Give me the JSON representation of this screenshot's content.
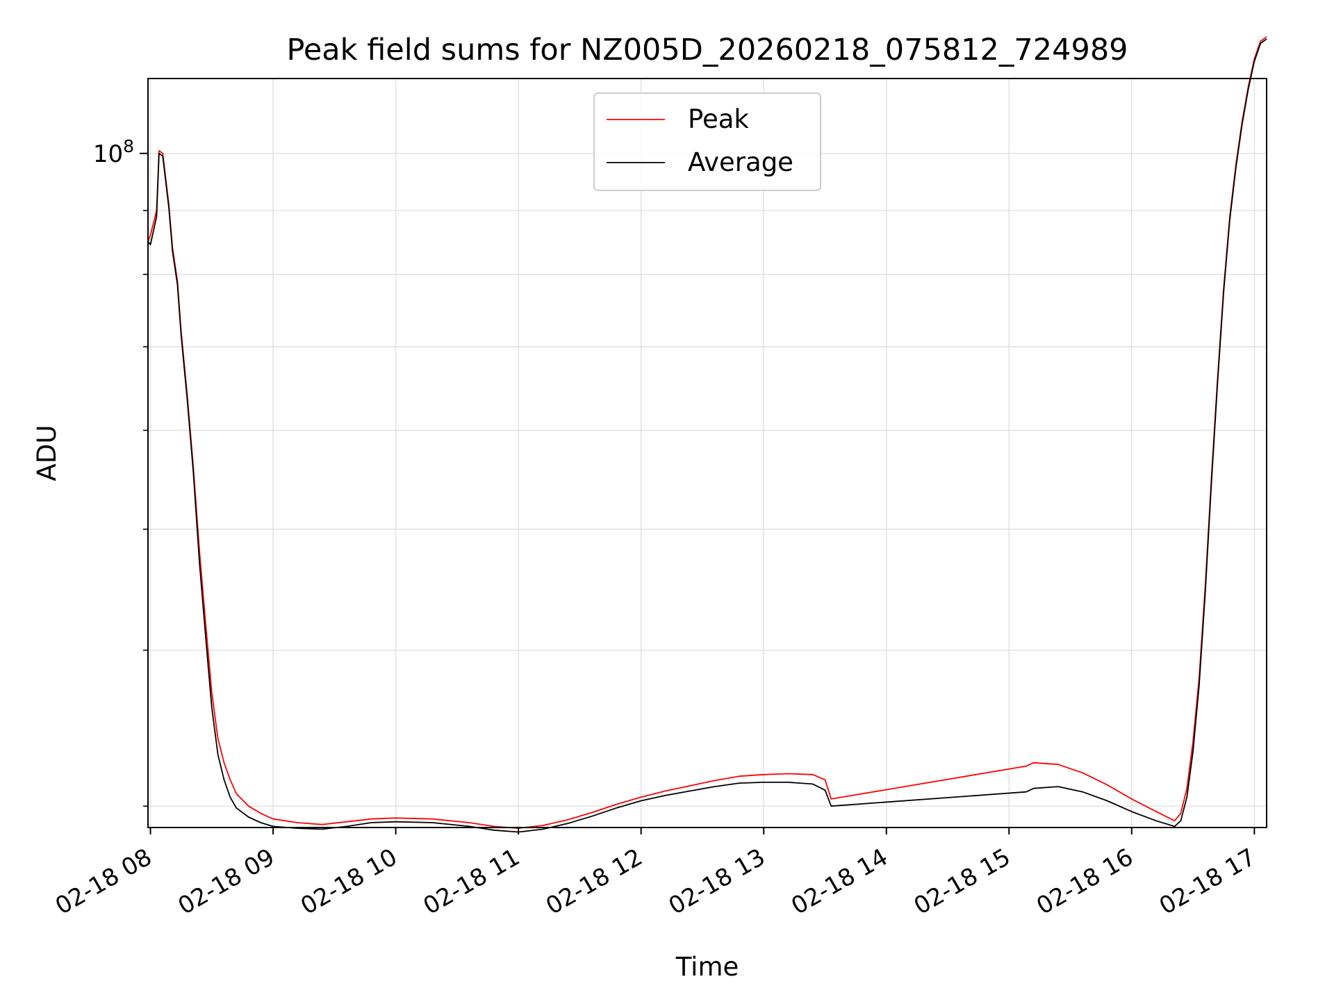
{
  "chart_data": {
    "type": "line",
    "title": "Peak field sums for NZ005D_20260218_075812_724989",
    "xlabel": "Time",
    "ylabel": "ADU",
    "yscale": "log",
    "grid": true,
    "legend_position": "top-center",
    "xlim": [
      7.98,
      17.1
    ],
    "ylim_log10": [
      7.46,
      8.06
    ],
    "y_tick_labels": [
      {
        "base": "10",
        "exp": "8",
        "value": 100000000
      }
    ],
    "y_minor_ticks": [
      30000000,
      40000000,
      50000000,
      60000000,
      70000000,
      80000000,
      90000000
    ],
    "x_tick_labels": [
      "02-18 08",
      "02-18 09",
      "02-18 10",
      "02-18 11",
      "02-18 12",
      "02-18 13",
      "02-18 14",
      "02-18 15",
      "02-18 16",
      "02-18 17"
    ],
    "x_ticks": [
      8,
      9,
      10,
      11,
      12,
      13,
      14,
      15,
      16,
      17
    ],
    "series": [
      {
        "name": "Peak",
        "color": "#ff0000",
        "x": [
          7.98,
          8.0,
          8.05,
          8.07,
          8.1,
          8.15,
          8.18,
          8.22,
          8.25,
          8.3,
          8.35,
          8.4,
          8.45,
          8.5,
          8.55,
          8.6,
          8.65,
          8.7,
          8.8,
          8.9,
          9.0,
          9.2,
          9.4,
          9.6,
          9.8,
          10.0,
          10.3,
          10.6,
          10.8,
          11.0,
          11.2,
          11.4,
          11.6,
          11.8,
          12.0,
          12.2,
          12.4,
          12.6,
          12.8,
          13.0,
          13.2,
          13.4,
          13.5,
          13.55,
          15.14,
          15.2,
          15.4,
          15.6,
          15.8,
          16.0,
          16.2,
          16.35,
          16.4,
          16.45,
          16.5,
          16.55,
          16.6,
          16.65,
          16.7,
          16.75,
          16.8,
          16.85,
          16.9,
          16.95,
          17.0,
          17.05,
          17.1
        ],
        "y": [
          85000000,
          86000000,
          90000000,
          100500000,
          100000000,
          91000000,
          84000000,
          79000000,
          72000000,
          64000000,
          56000000,
          48000000,
          42000000,
          37000000,
          34000000,
          32500000,
          31500000,
          30700000,
          30000000,
          29600000,
          29300000,
          29100000,
          29000000,
          29150000,
          29300000,
          29350000,
          29300000,
          29100000,
          28900000,
          28800000,
          28950000,
          29250000,
          29650000,
          30100000,
          30500000,
          30850000,
          31150000,
          31450000,
          31700000,
          31800000,
          31850000,
          31800000,
          31500000,
          30400000,
          32300000,
          32500000,
          32400000,
          31900000,
          31200000,
          30400000,
          29700000,
          29200000,
          29600000,
          31000000,
          33800000,
          38000000,
          45000000,
          55000000,
          66000000,
          78000000,
          89000000,
          98000000,
          106000000,
          113000000,
          119000000,
          123000000,
          124000000
        ]
      },
      {
        "name": "Average",
        "color": "#000000",
        "x": [
          7.98,
          8.0,
          8.05,
          8.07,
          8.1,
          8.15,
          8.18,
          8.22,
          8.25,
          8.3,
          8.35,
          8.4,
          8.45,
          8.5,
          8.55,
          8.6,
          8.65,
          8.7,
          8.8,
          8.9,
          9.0,
          9.2,
          9.4,
          9.6,
          9.8,
          10.0,
          10.3,
          10.6,
          10.8,
          11.0,
          11.2,
          11.4,
          11.6,
          11.8,
          12.0,
          12.2,
          12.4,
          12.6,
          12.8,
          13.0,
          13.2,
          13.4,
          13.5,
          13.55,
          15.14,
          15.2,
          15.4,
          15.6,
          15.8,
          16.0,
          16.2,
          16.35,
          16.4,
          16.45,
          16.5,
          16.55,
          16.6,
          16.65,
          16.7,
          16.75,
          16.8,
          16.85,
          16.9,
          16.95,
          17.0,
          17.05,
          17.1
        ],
        "y": [
          85000000,
          84500000,
          89000000,
          100000000,
          99500000,
          90500000,
          83500000,
          78500000,
          71500000,
          63500000,
          55500000,
          47000000,
          41000000,
          36000000,
          33000000,
          31500000,
          30500000,
          29900000,
          29400000,
          29100000,
          28900000,
          28800000,
          28750000,
          28900000,
          29100000,
          29150000,
          29100000,
          28900000,
          28700000,
          28600000,
          28750000,
          29050000,
          29450000,
          29900000,
          30300000,
          30600000,
          30850000,
          31100000,
          31300000,
          31350000,
          31350000,
          31250000,
          30900000,
          30000000,
          30800000,
          31000000,
          31100000,
          30800000,
          30300000,
          29700000,
          29200000,
          28900000,
          29200000,
          30500000,
          33200000,
          37500000,
          44500000,
          54500000,
          65500000,
          77500000,
          88500000,
          97500000,
          105500000,
          112500000,
          118500000,
          122500000,
          123500000
        ]
      }
    ]
  }
}
